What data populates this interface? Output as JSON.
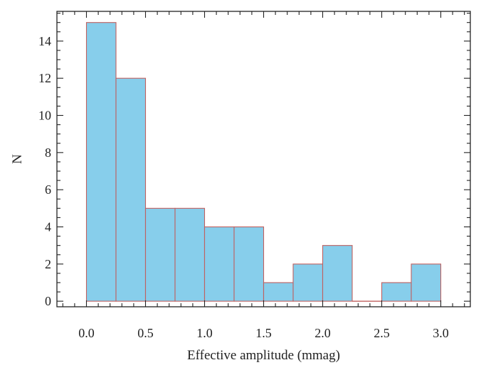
{
  "chart_data": {
    "type": "bar",
    "subtype": "histogram",
    "title": "",
    "xlabel": "Effective amplitude (mmag)",
    "ylabel": "N",
    "bin_edges": [
      0.0,
      0.25,
      0.5,
      0.75,
      1.0,
      1.25,
      1.5,
      1.75,
      2.0,
      2.25,
      2.5,
      2.75,
      3.0
    ],
    "values": [
      15,
      12,
      5,
      5,
      4,
      4,
      1,
      2,
      3,
      0,
      1,
      2
    ],
    "xlim": [
      -0.25,
      3.25
    ],
    "ylim": [
      -0.3,
      15.6
    ],
    "x_ticks": [
      0.0,
      0.5,
      1.0,
      1.5,
      2.0,
      2.5,
      3.0
    ],
    "x_tick_labels": [
      "0.0",
      "0.5",
      "1.0",
      "1.5",
      "2.0",
      "2.5",
      "3.0"
    ],
    "y_ticks": [
      0,
      2,
      4,
      6,
      8,
      10,
      12,
      14
    ],
    "y_tick_labels": [
      "0",
      "2",
      "4",
      "6",
      "8",
      "10",
      "12",
      "14"
    ],
    "grid": false,
    "colors": {
      "bar_fill": "#87ceeb",
      "bar_edge": "#c0605f",
      "axis": "#222222"
    }
  }
}
